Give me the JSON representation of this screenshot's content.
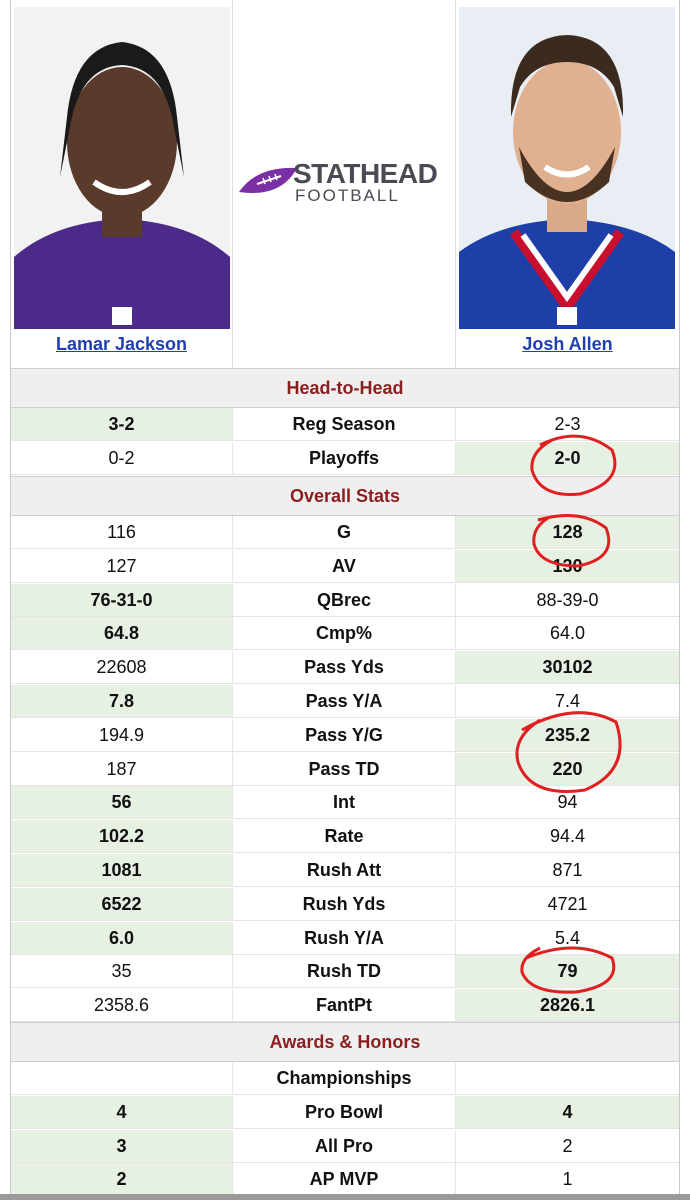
{
  "players": {
    "left": {
      "name": "Lamar Jackson",
      "jersey_color": "#4b2a8a"
    },
    "right": {
      "name": "Josh Allen",
      "jersey_color": "#1f3fa8"
    }
  },
  "logo": {
    "title": "STATHEAD",
    "subtitle": "FOOTBALL",
    "ball_color": "#7b2fa5"
  },
  "sections": {
    "head_to_head": "Head-to-Head",
    "overall": "Overall Stats",
    "awards": "Awards & Honors"
  },
  "head_to_head_rows": [
    {
      "stat": "Reg Season",
      "left": "3-2",
      "right": "2-3",
      "winner": "left"
    },
    {
      "stat": "Playoffs",
      "left": "0-2",
      "right": "2-0",
      "winner": "right"
    }
  ],
  "overall_rows": [
    {
      "stat": "G",
      "left": "116",
      "right": "128",
      "winner": "right"
    },
    {
      "stat": "AV",
      "left": "127",
      "right": "130",
      "winner": "right"
    },
    {
      "stat": "QBrec",
      "left": "76-31-0",
      "right": "88-39-0",
      "winner": "left"
    },
    {
      "stat": "Cmp%",
      "left": "64.8",
      "right": "64.0",
      "winner": "left"
    },
    {
      "stat": "Pass Yds",
      "left": "22608",
      "right": "30102",
      "winner": "right"
    },
    {
      "stat": "Pass Y/A",
      "left": "7.8",
      "right": "7.4",
      "winner": "left"
    },
    {
      "stat": "Pass Y/G",
      "left": "194.9",
      "right": "235.2",
      "winner": "right"
    },
    {
      "stat": "Pass TD",
      "left": "187",
      "right": "220",
      "winner": "right"
    },
    {
      "stat": "Int",
      "left": "56",
      "right": "94",
      "winner": "left"
    },
    {
      "stat": "Rate",
      "left": "102.2",
      "right": "94.4",
      "winner": "left"
    },
    {
      "stat": "Rush Att",
      "left": "1081",
      "right": "871",
      "winner": "left"
    },
    {
      "stat": "Rush Yds",
      "left": "6522",
      "right": "4721",
      "winner": "left"
    },
    {
      "stat": "Rush Y/A",
      "left": "6.0",
      "right": "5.4",
      "winner": "left"
    },
    {
      "stat": "Rush TD",
      "left": "35",
      "right": "79",
      "winner": "right"
    },
    {
      "stat": "FantPt",
      "left": "2358.6",
      "right": "2826.1",
      "winner": "right"
    }
  ],
  "awards_rows": [
    {
      "stat": "Championships",
      "left": "",
      "right": "",
      "winner": "none"
    },
    {
      "stat": "Pro Bowl",
      "left": "4",
      "right": "4",
      "winner": "both"
    },
    {
      "stat": "All Pro",
      "left": "3",
      "right": "2",
      "winner": "left"
    },
    {
      "stat": "AP MVP",
      "left": "2",
      "right": "1",
      "winner": "left"
    }
  ],
  "colors": {
    "win_bg": "#e6f1e3",
    "section_text": "#8b1e1e",
    "link": "#2040b0",
    "annotation": "#e02020"
  }
}
